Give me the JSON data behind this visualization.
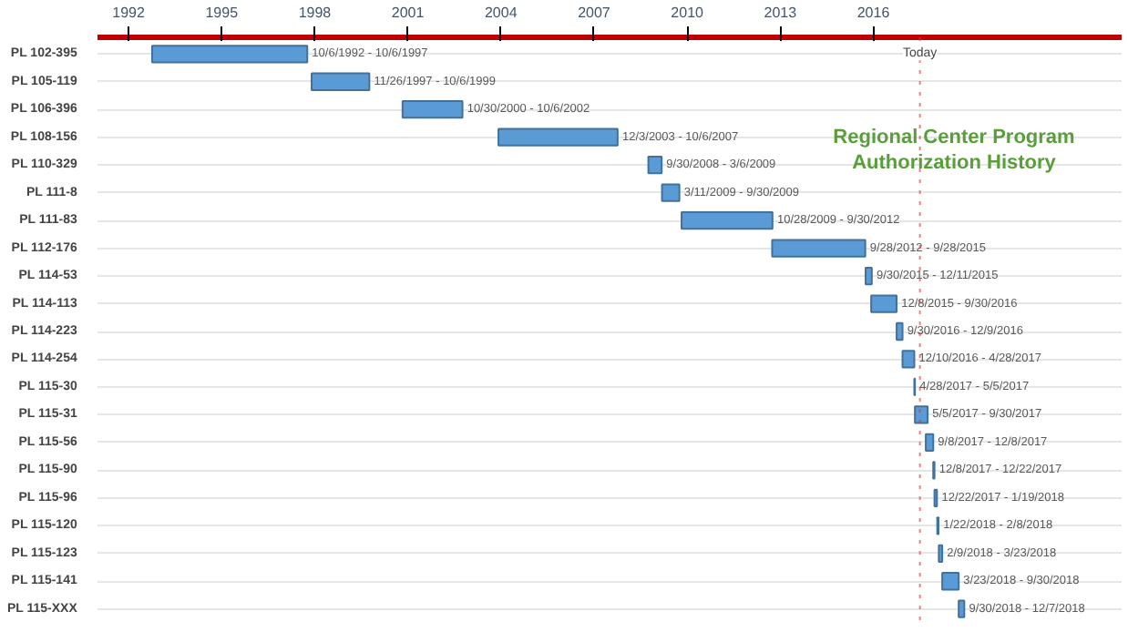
{
  "chart_data": {
    "type": "bar",
    "orientation": "horizontal",
    "title": "Regional Center Program Authorization History",
    "categories": [
      "PL 102-395",
      "PL 105-119",
      "PL 106-396",
      "PL 108-156",
      "PL 110-329",
      "PL 111-8",
      "PL 111-83",
      "PL 112-176",
      "PL 114-53",
      "PL 114-113",
      "PL 114-223",
      "PL 114-254",
      "PL 115-30",
      "PL 115-31",
      "PL 115-56",
      "PL 115-90",
      "PL 115-96",
      "PL 115-120",
      "PL 115-123",
      "PL 115-141",
      "PL 115-XXX"
    ],
    "base": [
      1992.76,
      1997.9,
      2000.83,
      2003.92,
      2008.75,
      2009.19,
      2009.82,
      2012.74,
      2015.75,
      2015.93,
      2016.75,
      2016.94,
      2017.32,
      2017.34,
      2017.69,
      2017.93,
      2017.97,
      2018.06,
      2018.11,
      2018.22,
      2018.75
    ],
    "values": [
      5.0,
      1.86,
      1.93,
      3.84,
      0.43,
      0.56,
      2.93,
      3.0,
      0.2,
      0.82,
      0.19,
      0.38,
      0.02,
      0.41,
      0.24,
      0.04,
      0.08,
      0.04,
      0.11,
      0.53,
      0.18
    ],
    "value_labels": [
      "10/6/1992 - 10/6/1997",
      "11/26/1997 - 10/6/1999",
      "10/30/2000 - 10/6/2002",
      "12/3/2003 - 10/6/2007",
      "9/30/2008 - 3/6/2009",
      "3/11/2009 - 9/30/2009",
      "10/28/2009 - 9/30/2012",
      "9/28/2012 - 9/28/2015",
      "9/30/2015 - 12/11/2015",
      "12/8/2015 - 9/30/2016",
      "9/30/2016 - 12/9/2016",
      "12/10/2016 - 4/28/2017",
      "4/28/2017 - 5/5/2017",
      "5/5/2017 - 9/30/2017",
      "9/8/2017 - 12/8/2017",
      "12/8/2017 - 12/22/2017",
      "12/22/2017 - 1/19/2018",
      "1/22/2018 - 2/8/2018",
      "2/9/2018 - 3/23/2018",
      "3/23/2018 - 9/30/2018",
      "9/30/2018 - 12/7/2018"
    ],
    "color": "#5b9bd5",
    "xlim": [
      1991,
      2024
    ],
    "xticks": [
      1992,
      1995,
      1998,
      2001,
      2004,
      2007,
      2010,
      2013,
      2016
    ],
    "ref_lines": [
      {
        "axis": "x",
        "value": 2017.5,
        "label": "Today",
        "color": "#e03030",
        "line_style": "dotted"
      }
    ],
    "grid": "y"
  }
}
